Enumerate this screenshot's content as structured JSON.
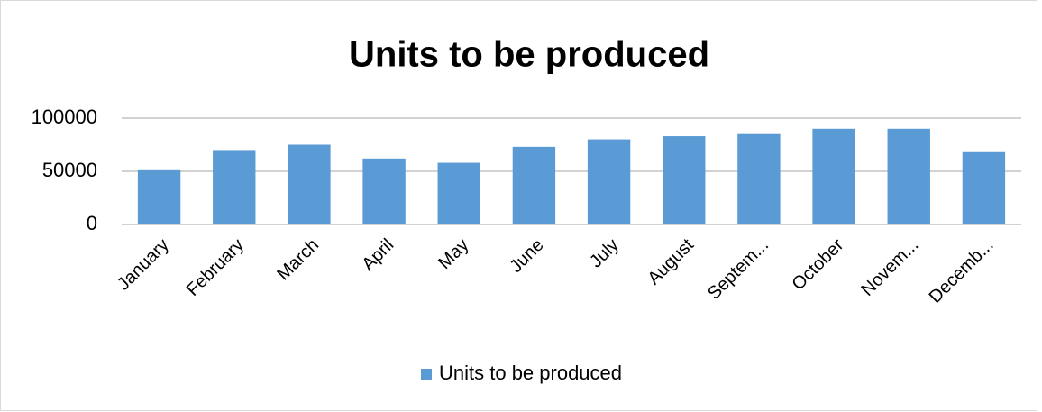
{
  "chart_data": {
    "type": "bar",
    "title": "Units to be produced",
    "categories": [
      "January",
      "February",
      "March",
      "April",
      "May",
      "June",
      "July",
      "August",
      "Septem...",
      "October",
      "Novem...",
      "Decemb..."
    ],
    "series": [
      {
        "name": "Units to be produced",
        "color": "#5b9bd5",
        "values": [
          51000,
          70000,
          75000,
          62000,
          58000,
          73000,
          80000,
          83000,
          85000,
          90000,
          90000,
          68000
        ]
      }
    ],
    "ylim": [
      0,
      100000
    ],
    "yticks": [
      0,
      50000,
      100000
    ],
    "grid": true,
    "legend": "bottom"
  }
}
